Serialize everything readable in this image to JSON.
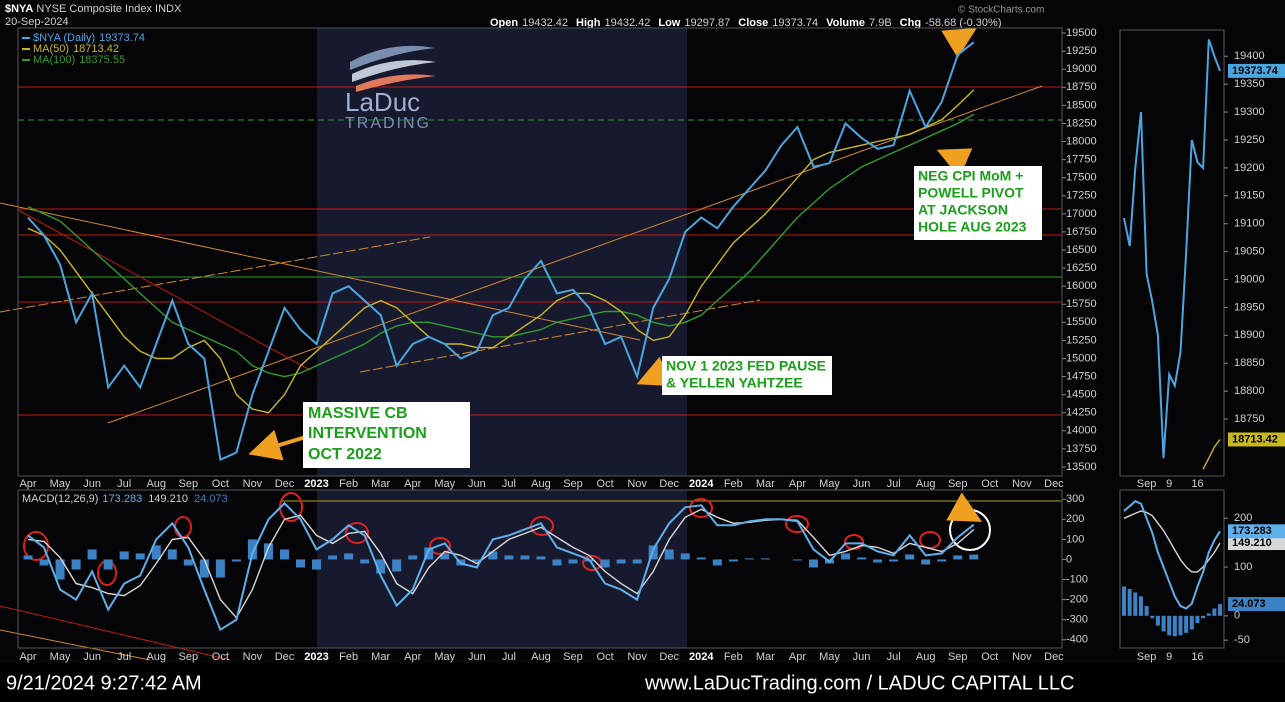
{
  "header": {
    "symbol": "$NYA",
    "name": "NYSE Composite Index",
    "exchange": "INDX",
    "date": "20-Sep-2024",
    "source": "© StockCharts.com",
    "quote": [
      {
        "label": "Open",
        "value": 19432.42
      },
      {
        "label": "High",
        "value": 19432.42
      },
      {
        "label": "Low",
        "value": 19297.87
      },
      {
        "label": "Close",
        "value": 19373.74
      },
      {
        "label": "Volume",
        "value": "7.9B"
      },
      {
        "label": "Chg",
        "value": "-58.68 (-0.30%)"
      }
    ]
  },
  "logo": {
    "name": "LaDuc",
    "tagline": "TRADING"
  },
  "annotations": [
    {
      "lines": [
        "MASSIVE CB",
        "INTERVENTION",
        "OCT 2022"
      ]
    },
    {
      "lines": [
        "NOV 1 2023 FED PAUSE",
        "& YELLEN YAHTZEE"
      ]
    },
    {
      "lines": [
        "NEG CPI MoM +",
        "POWELL PIVOT",
        "AT JACKSON",
        "HOLE AUG 2023"
      ]
    }
  ],
  "footer": {
    "timestamp": "9/21/2024 9:27:42 AM",
    "credit": "www.LaDucTrading.com / LADUC CAPITAL LLC"
  },
  "chart_data": [
    {
      "type": "line",
      "legend": "top-left",
      "categories": [
        "Apr",
        null,
        "May",
        null,
        "Jun",
        null,
        "Jul",
        null,
        "Aug",
        null,
        "Sep",
        null,
        "Oct",
        null,
        "Nov",
        null,
        "Dec",
        null,
        "2023",
        null,
        "Feb",
        null,
        "Mar",
        null,
        "Apr",
        null,
        "May",
        null,
        "Jun",
        null,
        "Jul",
        null,
        "Aug",
        null,
        "Sep",
        null,
        "Oct",
        null,
        "Nov",
        null,
        "Dec",
        null,
        "2024",
        null,
        "Feb",
        null,
        "Mar",
        null,
        "Apr",
        null,
        "May",
        null,
        "Jun",
        null,
        "Jul",
        null,
        "Aug",
        null,
        "Sep",
        null,
        "Oct",
        null,
        "Nov",
        null,
        "Dec",
        null
      ],
      "ylim": [
        13375,
        19570
      ],
      "yticks": [
        13500,
        13750,
        14000,
        14250,
        14500,
        14750,
        15000,
        15250,
        15500,
        15750,
        16000,
        16250,
        16500,
        16750,
        17000,
        17250,
        17500,
        17750,
        18000,
        18250,
        18500,
        18750,
        19000,
        19250,
        19500
      ],
      "series": [
        {
          "name": "MA(100)",
          "color": "#2f9a2f",
          "values": [
            17100,
            17000,
            16900,
            16700,
            16500,
            16300,
            16100,
            15900,
            15700,
            15500,
            15400,
            15300,
            15200,
            15100,
            14900,
            14800,
            14750,
            14800,
            14900,
            15000,
            15100,
            15200,
            15350,
            15450,
            15500,
            15500,
            15450,
            15400,
            15350,
            15300,
            15300,
            15350,
            15400,
            15500,
            15550,
            15600,
            15650,
            15650,
            15600,
            15500,
            15450,
            15500,
            15600,
            15800,
            16000,
            16200,
            16450,
            16700,
            16950,
            17150,
            17350,
            17500,
            17650,
            17750,
            17850,
            17950,
            18050,
            18150,
            18250,
            18375.55,
            null,
            null,
            null,
            null,
            null,
            null
          ]
        },
        {
          "name": "MA(50)",
          "color": "#c9b820",
          "values": [
            16800,
            16700,
            16500,
            16200,
            15900,
            15600,
            15300,
            15100,
            15000,
            15000,
            15150,
            15250,
            15000,
            14500,
            14300,
            14250,
            14500,
            14900,
            15100,
            15300,
            15500,
            15700,
            15800,
            15700,
            15500,
            15300,
            15200,
            15200,
            15150,
            15150,
            15300,
            15450,
            15600,
            15800,
            15900,
            15900,
            15800,
            15650,
            15400,
            15250,
            15300,
            15600,
            16000,
            16300,
            16600,
            16800,
            17000,
            17250,
            17500,
            17750,
            17850,
            17900,
            17950,
            18000,
            18050,
            18100,
            18200,
            18300,
            18500,
            18713.42,
            null,
            null,
            null,
            null,
            null,
            null
          ]
        },
        {
          "name": "$NYA (Daily)",
          "color": "#4ba6e0",
          "values": [
            16950,
            16700,
            16300,
            15500,
            15900,
            14600,
            14900,
            14600,
            15200,
            15800,
            15200,
            15000,
            13600,
            13700,
            14500,
            15100,
            15700,
            15400,
            15200,
            15900,
            16000,
            15800,
            15600,
            14900,
            15200,
            15300,
            15200,
            15000,
            15100,
            15600,
            15700,
            16100,
            16350,
            15900,
            15950,
            15700,
            15200,
            15300,
            14750,
            15700,
            16100,
            16750,
            16950,
            16800,
            17100,
            17350,
            17600,
            17950,
            18200,
            17650,
            17700,
            18250,
            18050,
            17900,
            17950,
            18700,
            18200,
            18550,
            19200,
            19373.74,
            null,
            null,
            null,
            null,
            null,
            null
          ]
        }
      ]
    },
    {
      "type": "line",
      "title": "MACD(12,26,9)",
      "categories": [
        "Apr",
        null,
        "May",
        null,
        "Jun",
        null,
        "Jul",
        null,
        "Aug",
        null,
        "Sep",
        null,
        "Oct",
        null,
        "Nov",
        null,
        "Dec",
        null,
        "2023",
        null,
        "Feb",
        null,
        "Mar",
        null,
        "Apr",
        null,
        "May",
        null,
        "Jun",
        null,
        "Jul",
        null,
        "Aug",
        null,
        "Sep",
        null,
        "Oct",
        null,
        "Nov",
        null,
        "Dec",
        null,
        "2024",
        null,
        "Feb",
        null,
        "Mar",
        null,
        "Apr",
        null,
        "May",
        null,
        "Jun",
        null,
        "Jul",
        null,
        "Aug",
        null,
        "Sep",
        null,
        "Oct",
        null,
        "Nov",
        null,
        "Dec",
        null
      ],
      "ylim": [
        -441,
        346
      ],
      "yticks": [
        -400,
        -300,
        -200,
        -100,
        0,
        100,
        200,
        300
      ],
      "series": [
        {
          "type": "bar",
          "color": "#3d82c4",
          "values": [
            20,
            -30,
            -100,
            -50,
            50,
            -50,
            40,
            30,
            70,
            50,
            -30,
            -90,
            -90,
            -10,
            100,
            80,
            50,
            -40,
            -50,
            20,
            30,
            -20,
            -70,
            -60,
            20,
            60,
            30,
            -30,
            -10,
            40,
            20,
            20,
            15,
            -30,
            -20,
            -10,
            -40,
            -20,
            -20,
            70,
            50,
            30,
            10,
            -30,
            -10,
            5,
            5,
            0,
            -5,
            -40,
            -20,
            30,
            10,
            -15,
            -10,
            25,
            -25,
            -10,
            20,
            24.073,
            null,
            null,
            null,
            null,
            null,
            null
          ]
        },
        {
          "color": "#d8d8d8",
          "values": [
            100,
            90,
            10,
            -120,
            -140,
            -170,
            -180,
            -130,
            -20,
            100,
            110,
            0,
            -200,
            -290,
            -150,
            60,
            200,
            220,
            120,
            80,
            130,
            140,
            30,
            -120,
            -170,
            -40,
            40,
            20,
            -20,
            40,
            100,
            130,
            160,
            110,
            60,
            20,
            -60,
            -120,
            -170,
            -60,
            100,
            210,
            250,
            210,
            180,
            185,
            195,
            200,
            195,
            110,
            20,
            40,
            70,
            60,
            30,
            80,
            60,
            40,
            80,
            149.21,
            null,
            null,
            null,
            null,
            null,
            null
          ]
        },
        {
          "color": "#5fb0ea",
          "values": [
            120,
            60,
            -150,
            -200,
            -60,
            -250,
            -120,
            -80,
            100,
            180,
            60,
            -150,
            -350,
            -300,
            30,
            200,
            280,
            200,
            50,
            100,
            170,
            120,
            -80,
            -230,
            -150,
            50,
            80,
            -20,
            -40,
            100,
            120,
            150,
            180,
            60,
            30,
            0,
            -120,
            -150,
            -200,
            50,
            180,
            260,
            270,
            170,
            170,
            190,
            200,
            200,
            190,
            50,
            -10,
            80,
            80,
            40,
            20,
            120,
            20,
            30,
            110,
            173.283,
            null,
            null,
            null,
            null,
            null,
            null
          ]
        }
      ]
    },
    {
      "type": "line",
      "categories": [
        null,
        null,
        null,
        null,
        "Sep",
        null,
        null,
        null,
        "9",
        null,
        null,
        null,
        null,
        "16",
        null,
        null,
        null,
        null
      ],
      "ylim": [
        18648,
        19447
      ],
      "yticks": [
        18750,
        18800,
        18850,
        18900,
        18950,
        19000,
        19050,
        19100,
        19150,
        19200,
        19250,
        19300,
        19350,
        19400
      ],
      "series": [
        {
          "color": "#c9b820",
          "end_label": true,
          "values": [
            null,
            null,
            null,
            null,
            null,
            null,
            null,
            null,
            null,
            null,
            null,
            null,
            null,
            null,
            18660,
            18680,
            18700,
            18713.42
          ]
        },
        {
          "color": "#4ba6e0",
          "end_label": true,
          "values": [
            19110,
            19060,
            19200,
            19300,
            19010,
            18960,
            18900,
            18680,
            18830,
            18810,
            18870,
            19050,
            19250,
            19210,
            19200,
            19430,
            19400,
            19373.74
          ]
        }
      ]
    },
    {
      "type": "line",
      "categories": [
        null,
        null,
        null,
        null,
        "Sep",
        null,
        null,
        null,
        "9",
        null,
        null,
        null,
        null,
        "16",
        null,
        null,
        null,
        null
      ],
      "ylim": [
        -66,
        258
      ],
      "yticks": [
        -50,
        0,
        100,
        200
      ],
      "series": [
        {
          "type": "bar",
          "color": "#3d82c4",
          "end_label": true,
          "values": [
            60,
            55,
            48,
            40,
            20,
            -5,
            -20,
            -32,
            -40,
            -42,
            -40,
            -35,
            -28,
            -15,
            -5,
            5,
            15,
            24.073
          ]
        },
        {
          "color": "#d8d8d8",
          "end_label": true,
          "values": [
            200,
            205,
            210,
            215,
            212,
            205,
            190,
            175,
            155,
            135,
            115,
            100,
            90,
            90,
            100,
            115,
            130,
            149.21
          ],
          "value_labels": [
            null,
            null,
            null,
            null,
            null,
            null,
            null,
            null,
            null,
            null,
            null,
            null,
            null,
            null,
            null,
            null,
            null,
            "149.210"
          ]
        },
        {
          "color": "#5fb0ea",
          "end_label": true,
          "values": [
            215,
            225,
            235,
            230,
            200,
            170,
            130,
            100,
            70,
            40,
            20,
            15,
            25,
            60,
            90,
            130,
            155,
            173.283
          ]
        }
      ]
    }
  ]
}
